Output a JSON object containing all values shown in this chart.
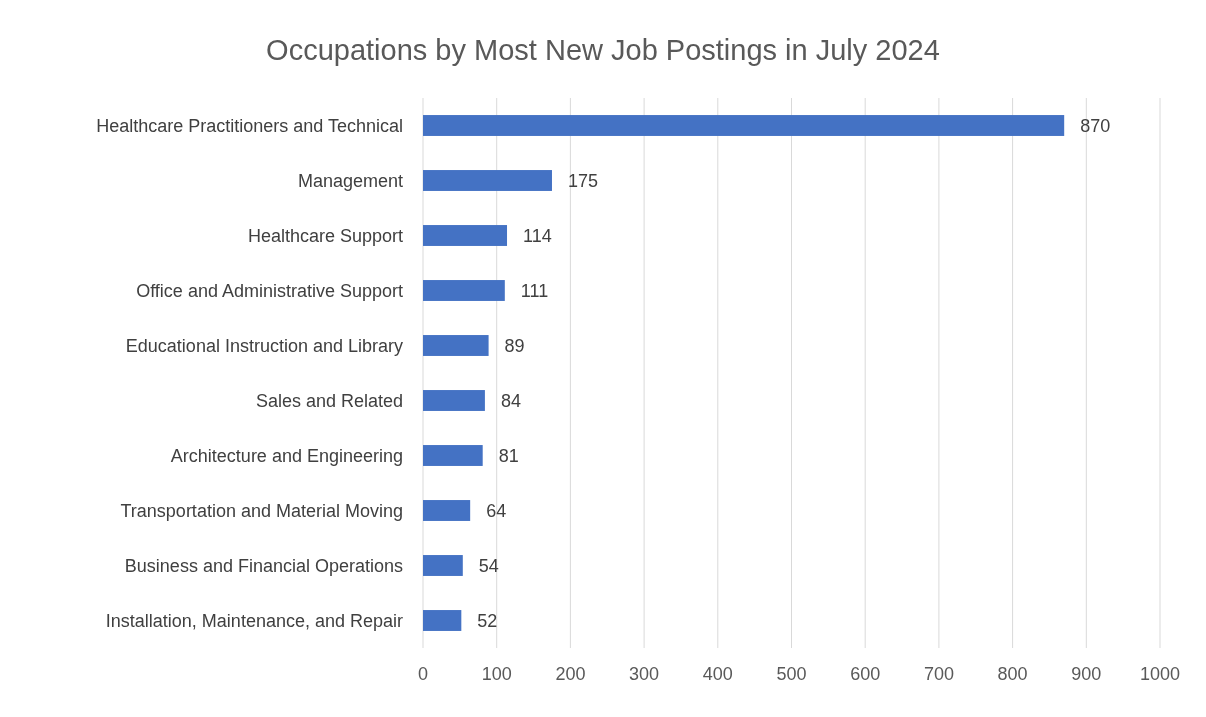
{
  "chart_data": {
    "type": "bar",
    "orientation": "horizontal",
    "title": "Occupations by Most New Job Postings in July 2024",
    "categories": [
      "Healthcare Practitioners and Technical",
      "Management",
      "Healthcare Support",
      "Office and Administrative Support",
      "Educational Instruction and Library",
      "Sales and Related",
      "Architecture and Engineering",
      "Transportation and Material Moving",
      "Business and Financial Operations",
      "Installation, Maintenance, and Repair"
    ],
    "values": [
      870,
      175,
      114,
      111,
      89,
      84,
      81,
      64,
      54,
      52
    ],
    "color": "#4472c4",
    "xlim": [
      0,
      1000
    ],
    "xticks": [
      0,
      100,
      200,
      300,
      400,
      500,
      600,
      700,
      800,
      900,
      1000
    ],
    "grid": "x",
    "data_labels": true
  }
}
